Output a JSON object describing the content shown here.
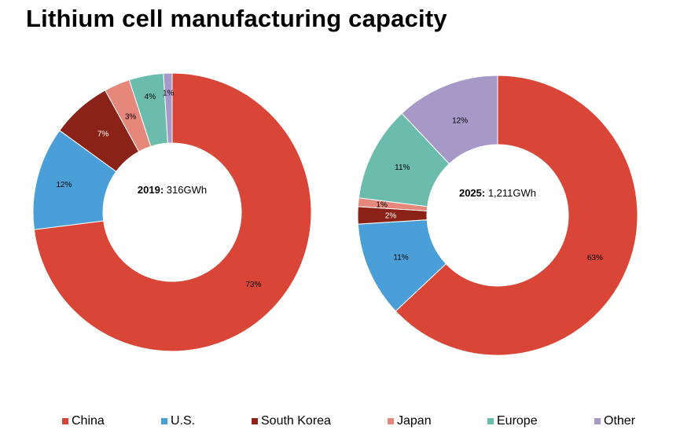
{
  "title": "Lithium cell manufacturing capacity",
  "colors": {
    "China": "#d94536",
    "U.S.": "#4b9fd8",
    "South Korea": "#8b2218",
    "Japan": "#e5877a",
    "Europe": "#6bbcad",
    "Other": "#a698c7"
  },
  "legend": [
    "China",
    "U.S.",
    "South Korea",
    "Japan",
    "Europe",
    "Other"
  ],
  "chart_data": [
    {
      "type": "pie",
      "variant": "donut",
      "center_year": "2019:",
      "center_value": "316GWh",
      "slices": [
        {
          "name": "China",
          "value": 73,
          "label": "73%"
        },
        {
          "name": "U.S.",
          "value": 12,
          "label": "12%"
        },
        {
          "name": "South Korea",
          "value": 7,
          "label": "7%"
        },
        {
          "name": "Japan",
          "value": 3,
          "label": "3%"
        },
        {
          "name": "Europe",
          "value": 4,
          "label": "4%"
        },
        {
          "name": "Other",
          "value": 1,
          "label": "1%"
        }
      ],
      "legend_position": "bottom"
    },
    {
      "type": "pie",
      "variant": "donut",
      "center_year": "2025:",
      "center_value": "1,211GWh",
      "slices": [
        {
          "name": "China",
          "value": 63,
          "label": "63%"
        },
        {
          "name": "U.S.",
          "value": 11,
          "label": "11%"
        },
        {
          "name": "South Korea",
          "value": 2,
          "label": "2%"
        },
        {
          "name": "Japan",
          "value": 1,
          "label": "1%"
        },
        {
          "name": "Europe",
          "value": 11,
          "label": "11%"
        },
        {
          "name": "Other",
          "value": 12,
          "label": "12%"
        }
      ],
      "legend_position": "bottom"
    }
  ]
}
